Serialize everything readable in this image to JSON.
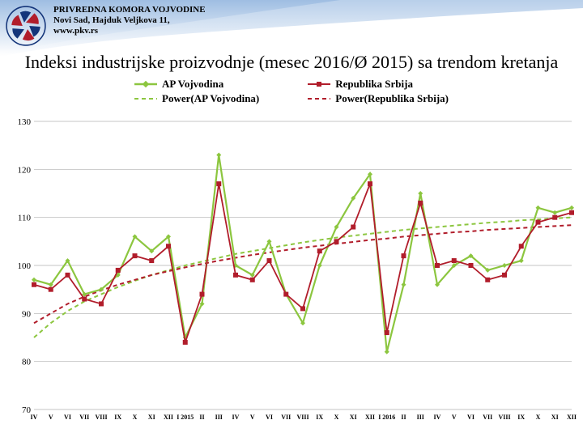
{
  "header": {
    "org_name": "PRIVREDNA KOMORA VOJVODINE",
    "address": "Novi Sad, Hajduk Veljkova 11,",
    "website": "www.pkv.rs",
    "logo_colors": {
      "outer_stroke": "#14357a",
      "petal_red": "#b11d2b",
      "petal_blue": "#14357a"
    }
  },
  "title": "Indeksi industrijske proizvodnje (mesec 2016/Ø 2015) sa trendom kretanja",
  "legend": {
    "s1": "AP Vojvodina",
    "s2": "Republika Srbija",
    "s3": "Power(AP Vojvodina)",
    "s4": "Power(Republika Srbija)"
  },
  "chart": {
    "type": "line",
    "background_color": "#ffffff",
    "grid_color": "#b0b0b0",
    "axis_fontsize": 8,
    "tick_fontsize": 11,
    "ylim": [
      70,
      130
    ],
    "ytick_step": 10,
    "x_labels": [
      "IV",
      "V",
      "VI",
      "VII",
      "VIII",
      "IX",
      "X",
      "XI",
      "XII",
      "I 2015",
      "II",
      "III",
      "IV",
      "V",
      "VI",
      "VII",
      "VIII",
      "IX",
      "X",
      "XI",
      "XII",
      "I 2016",
      "II",
      "III",
      "IV",
      "V",
      "VI",
      "VII",
      "VIII",
      "IX",
      "X",
      "XI",
      "XII"
    ],
    "series": {
      "ap_vojvodina": {
        "color": "#8cc63f",
        "marker": "diamond",
        "marker_size": 6,
        "line_width": 2.2,
        "values": [
          97,
          96,
          101,
          94,
          95,
          98,
          106,
          103,
          106,
          85,
          92,
          123,
          100,
          98,
          105,
          94,
          88,
          100,
          108,
          114,
          119,
          82,
          96,
          115,
          96,
          100,
          102,
          99,
          100,
          101,
          112,
          111,
          112
        ]
      },
      "republika_srbija": {
        "color": "#b11d2b",
        "marker": "square",
        "marker_size": 6,
        "line_width": 1.8,
        "values": [
          96,
          95,
          98,
          93,
          92,
          99,
          102,
          101,
          104,
          84,
          94,
          117,
          98,
          97,
          101,
          94,
          91,
          103,
          105,
          108,
          117,
          86,
          102,
          113,
          100,
          101,
          100,
          97,
          98,
          104,
          109,
          110,
          111
        ]
      },
      "power_ap": {
        "color": "#8cc63f",
        "dash": [
          5,
          4
        ],
        "line_width": 2,
        "values": [
          85,
          88,
          90.5,
          92.5,
          94,
          95.5,
          96.8,
          98,
          99,
          100,
          100.8,
          101.6,
          102.4,
          103,
          103.6,
          104.2,
          104.8,
          105.3,
          105.8,
          106.2,
          106.6,
          107,
          107.4,
          107.7,
          108,
          108.3,
          108.6,
          108.9,
          109.1,
          109.4,
          109.6,
          109.8,
          110
        ]
      },
      "power_rs": {
        "color": "#b11d2b",
        "dash": [
          5,
          4
        ],
        "line_width": 2,
        "values": [
          88,
          90,
          92,
          93.5,
          94.8,
          96,
          97,
          98,
          98.8,
          99.6,
          100.3,
          101,
          101.6,
          102.2,
          102.7,
          103.2,
          103.7,
          104.1,
          104.5,
          104.9,
          105.3,
          105.6,
          106,
          106.3,
          106.6,
          106.9,
          107.1,
          107.4,
          107.6,
          107.8,
          108,
          108.2,
          108.4
        ]
      }
    }
  }
}
